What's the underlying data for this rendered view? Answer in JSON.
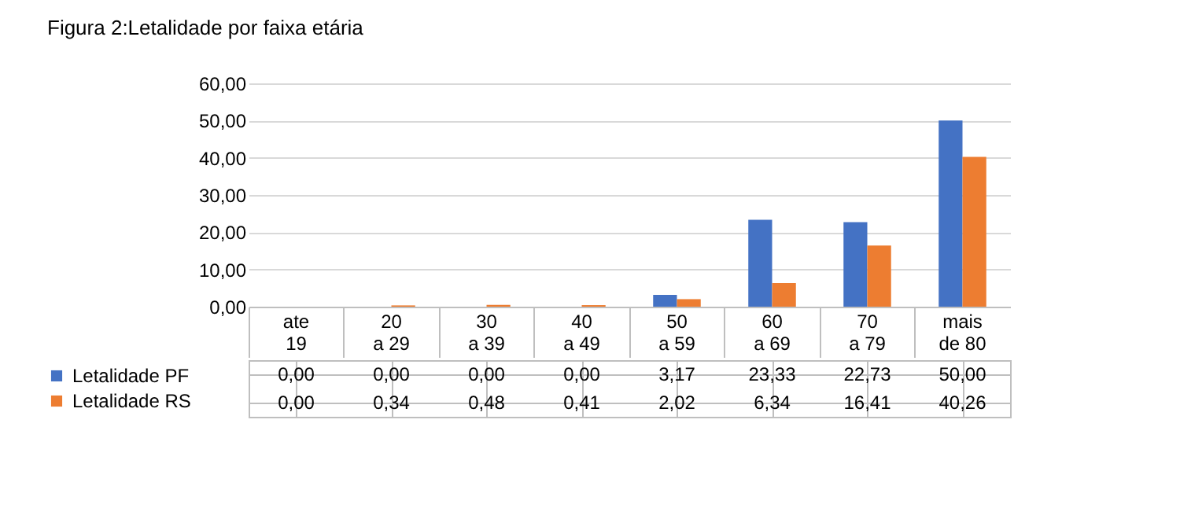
{
  "chart_data": {
    "type": "bar",
    "title": "Figura 2:Letalidade por faixa etária",
    "categories": [
      "ate  19",
      "20 a 29",
      "30 a 39",
      "40 a 49",
      "50 a 59",
      "60 a 69",
      "70 a 79",
      "mais de 80"
    ],
    "series": [
      {
        "name": "Letalidade PF",
        "color": "#4472c4",
        "values": [
          0.0,
          0.0,
          0.0,
          0.0,
          3.17,
          23.33,
          22.73,
          50.0
        ],
        "value_labels": [
          "0,00",
          "0,00",
          "0,00",
          "0,00",
          "3,17",
          "23,33",
          "22,73",
          "50,00"
        ]
      },
      {
        "name": "Letalidade RS",
        "color": "#ed7d31",
        "values": [
          0.0,
          0.34,
          0.48,
          0.41,
          2.02,
          6.34,
          16.41,
          40.26
        ],
        "value_labels": [
          "0,00",
          "0,34",
          "0,48",
          "0,41",
          "2,02",
          "6,34",
          "16,41",
          "40,26"
        ]
      }
    ],
    "ylim": [
      0,
      60
    ],
    "yticks": [
      {
        "value": 0,
        "label": "0,00"
      },
      {
        "value": 10,
        "label": "10,00"
      },
      {
        "value": 20,
        "label": "20,00"
      },
      {
        "value": 30,
        "label": "30,00"
      },
      {
        "value": 40,
        "label": "40,00"
      },
      {
        "value": 50,
        "label": "50,00"
      },
      {
        "value": 60,
        "label": "60,00"
      }
    ],
    "grid": "y",
    "legend": "left"
  }
}
